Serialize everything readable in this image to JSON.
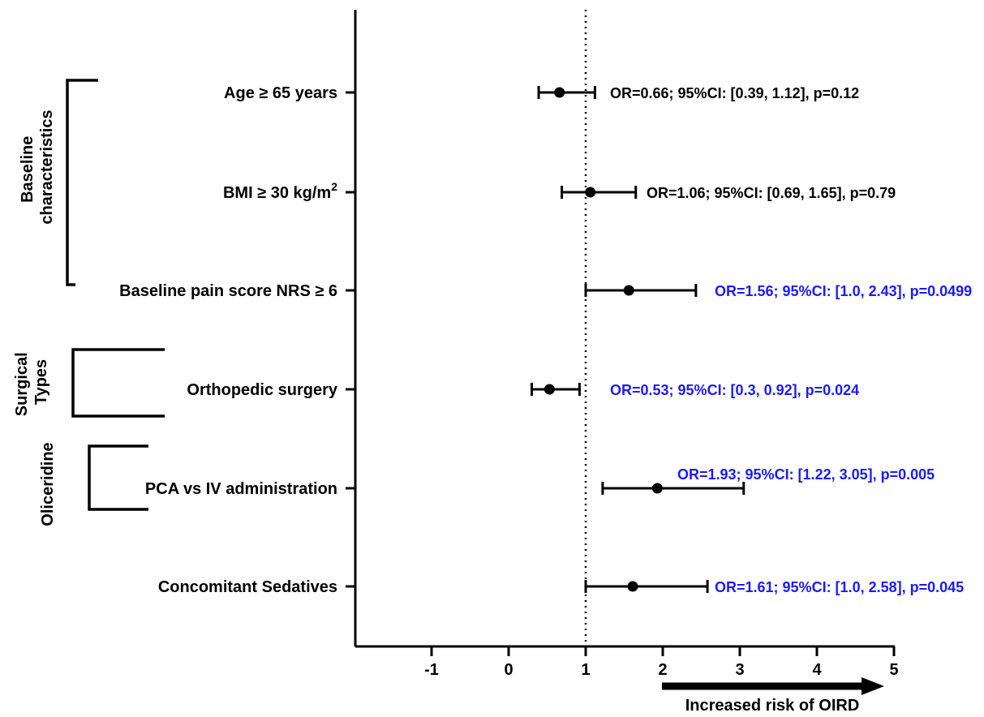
{
  "chart_data": {
    "type": "forest",
    "x_ticks": [
      "-1",
      "0",
      "1",
      "2",
      "3",
      "4",
      "5"
    ],
    "x_range": [
      -2,
      5
    ],
    "reference_line_x": 1,
    "reference_line_style": "dotted",
    "arrow_label": "Increased risk of OIRD",
    "colors": {
      "significant": "#1a1aff",
      "not_significant": "#000000"
    },
    "groups": [
      {
        "label_lines": [
          "Baseline",
          "characteristics"
        ]
      },
      {
        "label_lines": [
          "Surgical",
          "Types"
        ]
      },
      {
        "label_lines": [
          "Oliceridine"
        ]
      }
    ],
    "rows": [
      {
        "label": "Age ≥ 65 years",
        "or": 0.66,
        "ci_low": 0.39,
        "ci_high": 1.12,
        "p": 0.12,
        "annotation": "OR=0.66; 95%CI: [0.39, 1.12], p=0.12",
        "significant": false
      },
      {
        "label": "BMI ≥ 30 kg/m",
        "label_sup": "2",
        "or": 1.06,
        "ci_low": 0.69,
        "ci_high": 1.65,
        "p": 0.79,
        "annotation": "OR=1.06; 95%CI: [0.69, 1.65], p=0.79",
        "significant": false
      },
      {
        "label": "Baseline pain score NRS ≥ 6",
        "or": 1.56,
        "ci_low": 1.0,
        "ci_high": 2.43,
        "p": 0.0499,
        "annotation": "OR=1.56; 95%CI: [1.0, 2.43], p=0.0499",
        "significant": true
      },
      {
        "label": "Orthopedic surgery",
        "or": 0.53,
        "ci_low": 0.3,
        "ci_high": 0.92,
        "p": 0.024,
        "annotation": "OR=0.53; 95%CI: [0.3, 0.92], p=0.024",
        "significant": true
      },
      {
        "label": "PCA vs IV administration",
        "or": 1.93,
        "ci_low": 1.22,
        "ci_high": 3.05,
        "p": 0.005,
        "annotation": "OR=1.93; 95%CI: [1.22, 3.05], p=0.005",
        "significant": true
      },
      {
        "label": "Concomitant  Sedatives",
        "or": 1.61,
        "ci_low": 1.0,
        "ci_high": 2.58,
        "p": 0.045,
        "annotation": "OR=1.61; 95%CI: [1.0, 2.58], p=0.045",
        "significant": true
      }
    ]
  }
}
